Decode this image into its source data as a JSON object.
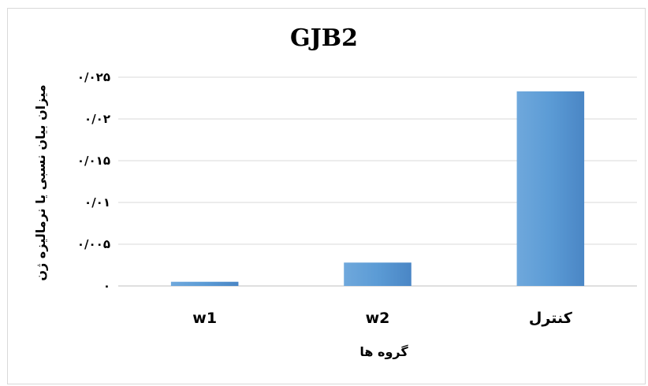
{
  "chart_data": {
    "type": "bar",
    "title": "GJB2",
    "xlabel": "گروه ها",
    "ylabel": "میزان بیان نسبی یا نرمالیزه ژن",
    "categories": [
      "w1",
      "w2",
      "کنترل"
    ],
    "values": [
      0.0005,
      0.0028,
      0.0233
    ],
    "ylim": [
      0,
      0.025
    ],
    "yticks": [
      0,
      0.005,
      0.01,
      0.015,
      0.02,
      0.025
    ],
    "ytick_labels": [
      "۰",
      "۰/۰۰۵",
      "۰/۰۱",
      "۰/۰۱۵",
      "۰/۰۲",
      "۰/۰۲۵"
    ],
    "grid": true,
    "legend": "none",
    "colors": {
      "bar": "#5b9bd5",
      "bar_light": "#6fa8dc",
      "bar_dark": "#4a86c5"
    }
  }
}
